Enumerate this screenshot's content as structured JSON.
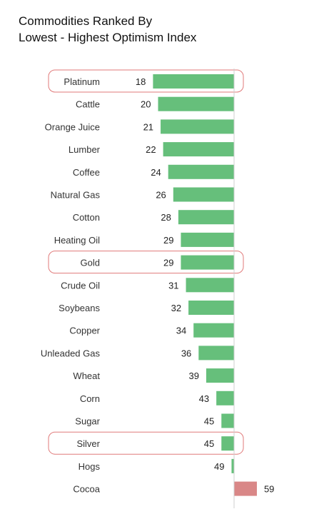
{
  "title": {
    "line1": "Commodities Ranked By",
    "line2": "Lowest - Highest Optimism Index"
  },
  "chart_data": {
    "type": "bar",
    "orientation": "horizontal",
    "baseline": 50,
    "categories": [
      "Platinum",
      "Cattle",
      "Orange Juice",
      "Lumber",
      "Coffee",
      "Natural Gas",
      "Cotton",
      "Heating Oil",
      "Gold",
      "Crude Oil",
      "Soybeans",
      "Copper",
      "Unleaded Gas",
      "Wheat",
      "Corn",
      "Sugar",
      "Silver",
      "Hogs",
      "Cocoa"
    ],
    "values": [
      18,
      20,
      21,
      22,
      24,
      26,
      28,
      29,
      29,
      31,
      32,
      34,
      36,
      39,
      43,
      45,
      45,
      49,
      59
    ],
    "highlighted": [
      "Platinum",
      "Gold",
      "Silver"
    ],
    "colors": {
      "below_baseline": "#66bf7b",
      "above_baseline": "#d98787",
      "highlight_outline": "#e07a7a",
      "baseline_line": "#cfcfcf"
    },
    "title": "Commodities Ranked By Lowest - Highest Optimism Index",
    "xlabel": "",
    "ylabel": "",
    "grid": false,
    "legend": "none"
  }
}
